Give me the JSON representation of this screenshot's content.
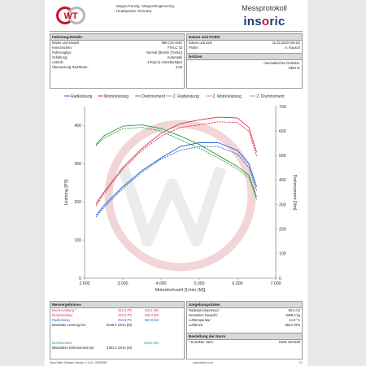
{
  "header": {
    "logo_text": "WT",
    "center_lines": [
      "WagnerTuning / WagnerEngineering",
      "Headquarter Germany"
    ],
    "title": "Messprotokoll",
    "brand": {
      "part1": "ins",
      "part2": "o",
      "part3": "ric"
    }
  },
  "vehicle": {
    "title": "Fahrzeug-Details",
    "rows": [
      {
        "k": "Marke und Modell:",
        "v": "MB C43 AMG"
      },
      {
        "k": "Kennzeichen:",
        "v": "FN-LC 43"
      },
      {
        "k": "",
        "v": ""
      },
      {
        "k": "Fahrzeugtyp:",
        "v": "Normal (Benzin (Turbo))"
      },
      {
        "k": "Schaltung:",
        "v": "Automatik"
      },
      {
        "k": "Antrieb:",
        "v": "4-Rad (2 Antriebsräder)"
      },
      {
        "k": "Übersetzung Rad:Motor :",
        "v": "5.00"
      }
    ]
  },
  "test": {
    "title": "Datum und Prüfer",
    "rows": [
      {
        "k": "Datum und Zeit:",
        "v": "11.03.2020 (09:15)"
      },
      {
        "k": "Prüfer:",
        "v": "A. Kausch"
      }
    ],
    "notes_title": "Notizen",
    "notes": [
      "Automatisches Getriebe,",
      "OEM IC"
    ]
  },
  "chart_data": {
    "type": "line",
    "legend": [
      "Radleistung",
      "Motorleistung",
      "Drehmoment",
      "2. Radleistung",
      "2. Motorleistung",
      "2. Drehmoment"
    ],
    "xlabel": "Motordrehzahl [1/min (M)]",
    "ylabel_left": "Leistung [PS]",
    "ylabel_right": "Drehmoment [Nm]",
    "xlim": [
      2000,
      7000
    ],
    "ylim_left": [
      0,
      450
    ],
    "ylim_right": [
      0,
      700
    ],
    "x_ticks": [
      "2.000",
      "3.000",
      "4.000",
      "5.000",
      "6.000",
      "7.000"
    ],
    "y_left_ticks": [
      "0",
      "100",
      "200",
      "300",
      "400"
    ],
    "y_right_ticks": [
      "0",
      "100",
      "200",
      "300",
      "400",
      "500",
      "600",
      "700"
    ],
    "colors": {
      "rad": "#1f5fd6",
      "motor": "#e0304a",
      "dreh": "#2a9a3a"
    },
    "series": [
      {
        "name": "Radleistung",
        "axis": "left",
        "color": "#1f5fd6",
        "dash": false,
        "x": [
          2300,
          2500,
          3000,
          3500,
          4000,
          4500,
          5000,
          5500,
          6000,
          6300,
          6500
        ],
        "y": [
          165,
          190,
          240,
          282,
          315,
          345,
          355,
          355,
          335,
          300,
          240
        ]
      },
      {
        "name": "Motorleistung",
        "axis": "left",
        "color": "#e0304a",
        "dash": false,
        "x": [
          2300,
          2500,
          3000,
          3500,
          4000,
          4500,
          5000,
          5500,
          6000,
          6300,
          6500
        ],
        "y": [
          195,
          225,
          290,
          340,
          380,
          405,
          415,
          422,
          420,
          395,
          330
        ]
      },
      {
        "name": "Drehmoment",
        "axis": "right",
        "color": "#2a9a3a",
        "dash": false,
        "x": [
          2300,
          2500,
          3000,
          3500,
          4000,
          4500,
          5000,
          5500,
          6000,
          6300,
          6500
        ],
        "y": [
          545,
          580,
          620,
          625,
          610,
          580,
          545,
          500,
          455,
          420,
          330
        ]
      },
      {
        "name": "2. Radleistung",
        "axis": "left",
        "color": "#1f5fd6",
        "dash": true,
        "x": [
          2300,
          2500,
          3000,
          3500,
          4000,
          4500,
          5000,
          5500,
          6000,
          6300,
          6500
        ],
        "y": [
          160,
          185,
          235,
          278,
          312,
          335,
          345,
          345,
          325,
          290,
          230
        ]
      },
      {
        "name": "2. Motorleistung",
        "axis": "left",
        "color": "#e0304a",
        "dash": true,
        "x": [
          2300,
          2500,
          3000,
          3500,
          4000,
          4500,
          5000,
          5500,
          6000,
          6300,
          6500
        ],
        "y": [
          190,
          220,
          285,
          335,
          372,
          395,
          402,
          410,
          408,
          385,
          320
        ]
      },
      {
        "name": "2. Drehmoment",
        "axis": "right",
        "color": "#2a9a3a",
        "dash": true,
        "x": [
          2300,
          2500,
          3000,
          3500,
          4000,
          4500,
          5000,
          5500,
          6000,
          6300,
          6500
        ],
        "y": [
          540,
          570,
          610,
          615,
          600,
          565,
          530,
          490,
          445,
          410,
          320
        ]
      }
    ]
  },
  "results": {
    "title": "Messergebnisse",
    "rows": [
      {
        "k": "Norm-Leistung *:",
        "v1": "421.5 PS",
        "v2": "310.1 kW",
        "color": "#e0304a"
      },
      {
        "k": "Motorleistung:",
        "v1": "432.8 PS",
        "v2": "318.3 kW",
        "color": "#e0304a"
      },
      {
        "k": "Radleistung:",
        "v1": "354.8 PS",
        "v2": "260.9 kW",
        "color": "#1f5fd6"
      },
      {
        "k": "Maximale Leistung bei:",
        "v1": "5035.5 1/min (M)",
        "v2": "",
        "color": "#222"
      }
    ],
    "torque_rows": [
      {
        "k": "Drehmoment:",
        "v1": "",
        "v2": "604.5 Nm",
        "color": "#2a9a3a"
      },
      {
        "k": "Maximales Drehmoment bei:",
        "v1": "3351.2 1/min (M)",
        "v2": "",
        "color": "#222"
      }
    ]
  },
  "environment": {
    "title": "Umgebungsdaten",
    "rows": [
      {
        "k": "Radiatorcompressor:",
        "v": "68.2 cm"
      },
      {
        "k": "Gesamtes Gewicht:",
        "v": "1889.0 kg"
      },
      {
        "k": "Lufttemperatur:",
        "v": "14.0 °C"
      },
      {
        "k": "Luftdruck:",
        "v": "993.0 hPa"
      }
    ],
    "norm_title": "Bestellung der Norm",
    "norm_rows": [
      {
        "k": "* Korrektur nach:",
        "v": "EWG 80/1269"
      }
    ]
  },
  "footer": {
    "left": "Dyno Ware Software Version: 1.4.10 / 00000962",
    "center": "www.insoric.com",
    "right": "1/1"
  }
}
